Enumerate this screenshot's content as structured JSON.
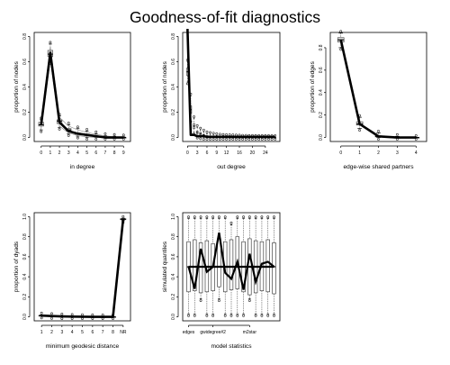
{
  "page_title": "Goodness-of-fit diagnostics",
  "chart_data": [
    {
      "type": "boxplot-line",
      "key": "indegree",
      "xlabel": "in degree",
      "ylabel": "proportion of nodes",
      "ylim": [
        0,
        0.8
      ],
      "yticks": [
        0.0,
        0.2,
        0.4,
        0.6,
        0.8
      ],
      "x": [
        0,
        1,
        2,
        3,
        4,
        5,
        6,
        7,
        8,
        9
      ],
      "xtick_labels": [
        "0",
        "1",
        "2",
        "3",
        "4",
        "5",
        "6",
        "7",
        "8",
        "9"
      ],
      "observed": [
        0.1,
        0.67,
        0.12,
        0.05,
        0.03,
        0.02,
        0.01,
        0.0,
        0.0,
        0.0
      ],
      "sim_median": [
        0.1,
        0.66,
        0.13,
        0.06,
        0.03,
        0.02,
        0.01,
        0.005,
        0.0,
        0.0
      ],
      "sim_q1": [
        0.09,
        0.64,
        0.11,
        0.05,
        0.025,
        0.015,
        0.005,
        0.0,
        0.0,
        0.0
      ],
      "sim_q3": [
        0.12,
        0.69,
        0.14,
        0.07,
        0.035,
        0.025,
        0.012,
        0.006,
        0.0,
        0.0
      ],
      "sim_min": [
        0.06,
        0.6,
        0.08,
        0.03,
        0.01,
        0.0,
        0.0,
        0.0,
        0.0,
        0.0
      ],
      "sim_max": [
        0.14,
        0.74,
        0.17,
        0.1,
        0.07,
        0.05,
        0.03,
        0.015,
        0.01,
        0.005
      ],
      "ci_low": [
        0.07,
        0.61,
        0.09,
        0.035,
        0.015,
        0.005,
        0.0,
        0.0,
        0.0,
        0.0
      ],
      "ci_high": [
        0.14,
        0.72,
        0.16,
        0.09,
        0.06,
        0.04,
        0.025,
        0.012,
        0.006,
        0.003
      ]
    },
    {
      "type": "boxplot-line",
      "key": "outdegree",
      "xlabel": "out degree",
      "ylabel": "proportion of nodes",
      "ylim": [
        0,
        0.8
      ],
      "yticks": [
        0.0,
        0.2,
        0.4,
        0.6,
        0.8
      ],
      "x": [
        0,
        1,
        2,
        3,
        4,
        5,
        6,
        7,
        8,
        9,
        10,
        11,
        12,
        13,
        14,
        15,
        16,
        17,
        18,
        19,
        20,
        21,
        22,
        23,
        24,
        25,
        26,
        27
      ],
      "xtick_labels": [
        "0",
        "3",
        "6",
        "9",
        "12",
        "16",
        "20",
        "24"
      ],
      "xtick_positions": [
        0,
        3,
        6,
        9,
        12,
        16,
        20,
        24
      ],
      "observed": [
        0.86,
        0.02,
        0.02,
        0.01,
        0.01,
        0.01,
        0.005,
        0.005,
        0.005,
        0.005,
        0.005,
        0.005,
        0.005,
        0.005,
        0.005,
        0.005,
        0.005,
        0.005,
        0.005,
        0.005,
        0.005,
        0.005,
        0.005,
        0.005,
        0.005,
        0.005,
        0.005,
        0.005
      ],
      "sim_median": [
        0.52,
        0.22,
        0.09,
        0.04,
        0.03,
        0.02,
        0.01,
        0.01,
        0.005,
        0.005,
        0.003,
        0.003,
        0.002,
        0.002,
        0.001,
        0.001,
        0.001,
        0.0,
        0.0,
        0.0,
        0.0,
        0.0,
        0.0,
        0.0,
        0.0,
        0.0,
        0.0,
        0.0
      ],
      "sim_q1": [
        0.49,
        0.19,
        0.07,
        0.03,
        0.02,
        0.01,
        0.005,
        0.005,
        0.0,
        0.0,
        0.0,
        0.0,
        0.0,
        0.0,
        0.0,
        0.0,
        0.0,
        0.0,
        0.0,
        0.0,
        0.0,
        0.0,
        0.0,
        0.0,
        0.0,
        0.0,
        0.0,
        0.0
      ],
      "sim_q3": [
        0.55,
        0.25,
        0.11,
        0.05,
        0.04,
        0.025,
        0.015,
        0.012,
        0.008,
        0.006,
        0.005,
        0.004,
        0.003,
        0.003,
        0.002,
        0.002,
        0.001,
        0.001,
        0.0,
        0.0,
        0.0,
        0.0,
        0.0,
        0.0,
        0.0,
        0.0,
        0.0,
        0.0
      ],
      "sim_min": [
        0.44,
        0.14,
        0.04,
        0.01,
        0.005,
        0.0,
        0.0,
        0.0,
        0.0,
        0.0,
        0.0,
        0.0,
        0.0,
        0.0,
        0.0,
        0.0,
        0.0,
        0.0,
        0.0,
        0.0,
        0.0,
        0.0,
        0.0,
        0.0,
        0.0,
        0.0,
        0.0,
        0.0
      ],
      "sim_max": [
        0.6,
        0.33,
        0.15,
        0.08,
        0.06,
        0.045,
        0.03,
        0.025,
        0.02,
        0.015,
        0.012,
        0.01,
        0.008,
        0.007,
        0.006,
        0.005,
        0.004,
        0.003,
        0.003,
        0.002,
        0.002,
        0.002,
        0.001,
        0.001,
        0.001,
        0.001,
        0.0,
        0.0
      ]
    },
    {
      "type": "boxplot-line",
      "key": "esp",
      "xlabel": "edge-wise shared partners",
      "ylabel": "proportion of edges",
      "ylim": [
        0,
        0.9
      ],
      "yticks": [
        0.0,
        0.2,
        0.4,
        0.6,
        0.8
      ],
      "x": [
        0,
        1,
        2,
        3,
        4
      ],
      "xtick_labels": [
        "0",
        "1",
        "2",
        "3",
        "4"
      ],
      "observed": [
        0.87,
        0.12,
        0.01,
        0.0,
        0.0
      ],
      "sim_median": [
        0.87,
        0.12,
        0.01,
        0.0,
        0.0
      ],
      "sim_q1": [
        0.85,
        0.11,
        0.005,
        0.0,
        0.0
      ],
      "sim_q3": [
        0.89,
        0.14,
        0.015,
        0.0,
        0.0
      ],
      "sim_min": [
        0.8,
        0.08,
        0.0,
        0.0,
        0.0
      ],
      "sim_max": [
        0.93,
        0.18,
        0.04,
        0.01,
        0.0
      ]
    },
    {
      "type": "boxplot-line",
      "key": "distance",
      "xlabel": "minimum geodesic distance",
      "ylabel": "proportion of dyads",
      "ylim": [
        0,
        1.0
      ],
      "yticks": [
        0.0,
        0.2,
        0.4,
        0.6,
        0.8,
        1.0
      ],
      "x": [
        1,
        2,
        3,
        4,
        5,
        6,
        7,
        8,
        9
      ],
      "xtick_labels": [
        "1",
        "2",
        "3",
        "4",
        "5",
        "6",
        "7",
        "8",
        "NR"
      ],
      "observed": [
        0.012,
        0.008,
        0.004,
        0.002,
        0.001,
        0.0,
        0.0,
        0.0,
        0.975
      ],
      "sim_median": [
        0.012,
        0.008,
        0.004,
        0.002,
        0.001,
        0.0,
        0.0,
        0.0,
        0.975
      ],
      "sim_q1": [
        0.01,
        0.006,
        0.003,
        0.001,
        0.0,
        0.0,
        0.0,
        0.0,
        0.97
      ],
      "sim_q3": [
        0.014,
        0.01,
        0.005,
        0.003,
        0.002,
        0.001,
        0.0,
        0.0,
        0.98
      ],
      "sim_min": [
        0.006,
        0.003,
        0.001,
        0.0,
        0.0,
        0.0,
        0.0,
        0.0,
        0.96
      ],
      "sim_max": [
        0.02,
        0.015,
        0.01,
        0.006,
        0.004,
        0.002,
        0.001,
        0.0,
        0.985
      ]
    },
    {
      "type": "boxplot-line",
      "key": "model",
      "xlabel": "model statistics",
      "ylabel": "simulated quantiles",
      "ylim": [
        0,
        1.0
      ],
      "yticks": [
        0.0,
        0.2,
        0.4,
        0.6,
        0.8,
        1.0
      ],
      "x": [
        1,
        2,
        3,
        4,
        5,
        6,
        7,
        8,
        9,
        10,
        11,
        12,
        13,
        14,
        15
      ],
      "xtick_labels": [
        "edges",
        "gwidegree#2",
        "m2star"
      ],
      "xtick_positions": [
        1,
        5,
        11
      ],
      "observed": [
        0.5,
        0.28,
        0.68,
        0.45,
        0.5,
        0.84,
        0.44,
        0.38,
        0.55,
        0.27,
        0.63,
        0.35,
        0.53,
        0.55,
        0.5
      ],
      "sim_median": [
        0.5,
        0.5,
        0.5,
        0.5,
        0.5,
        0.5,
        0.5,
        0.5,
        0.5,
        0.5,
        0.5,
        0.5,
        0.5,
        0.5,
        0.5
      ],
      "sim_q1": [
        0.25,
        0.26,
        0.24,
        0.25,
        0.26,
        0.3,
        0.25,
        0.27,
        0.28,
        0.25,
        0.22,
        0.24,
        0.26,
        0.25,
        0.23
      ],
      "sim_q3": [
        0.75,
        0.77,
        0.74,
        0.76,
        0.73,
        0.78,
        0.75,
        0.77,
        0.8,
        0.75,
        0.78,
        0.76,
        0.75,
        0.77,
        0.74
      ],
      "sim_min": [
        0.03,
        0.03,
        0.18,
        0.03,
        0.03,
        0.18,
        0.03,
        0.03,
        0.03,
        0.03,
        0.18,
        0.03,
        0.03,
        0.03,
        0.03
      ],
      "sim_max": [
        0.98,
        0.98,
        0.98,
        0.98,
        0.98,
        0.98,
        0.98,
        0.92,
        0.98,
        0.98,
        0.98,
        0.98,
        0.98,
        0.98,
        0.98
      ]
    }
  ]
}
